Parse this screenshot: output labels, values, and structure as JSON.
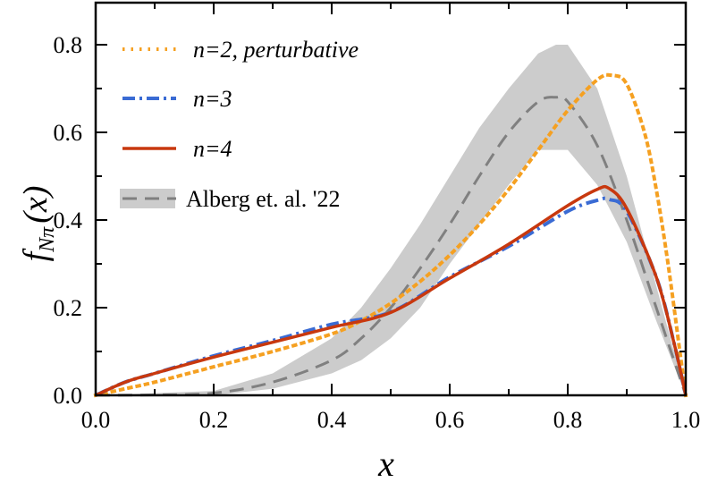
{
  "chart_data": {
    "type": "line",
    "xlabel": "x",
    "ylabel": {
      "main": "f",
      "sub": "Nπ",
      "arg": "(x)"
    },
    "xlim": [
      0,
      1
    ],
    "ylim": [
      0,
      0.88
    ],
    "xticks": [
      "0.0",
      "0.2",
      "0.4",
      "0.6",
      "0.8",
      "1.0"
    ],
    "yticks": [
      "0.0",
      "0.2",
      "0.4",
      "0.6",
      "0.8"
    ],
    "grid": false,
    "legend_position": "top-left",
    "series": [
      {
        "name": "n=2, perturbative",
        "color": "#f5a021",
        "style": "dotted",
        "x": [
          0,
          0.05,
          0.1,
          0.2,
          0.3,
          0.4,
          0.45,
          0.5,
          0.55,
          0.6,
          0.65,
          0.7,
          0.75,
          0.8,
          0.85,
          0.875,
          0.9,
          0.93,
          0.95,
          0.97,
          0.99,
          1.0
        ],
        "y": [
          0,
          0.015,
          0.03,
          0.065,
          0.1,
          0.14,
          0.17,
          0.21,
          0.26,
          0.32,
          0.39,
          0.47,
          0.56,
          0.65,
          0.72,
          0.73,
          0.71,
          0.6,
          0.47,
          0.3,
          0.1,
          0
        ]
      },
      {
        "name": "n=3",
        "color": "#3a6bd4",
        "style": "dashdot",
        "x": [
          0,
          0.05,
          0.1,
          0.2,
          0.3,
          0.4,
          0.5,
          0.6,
          0.7,
          0.8,
          0.85,
          0.87,
          0.9,
          0.95,
          0.98,
          1.0
        ],
        "y": [
          0,
          0.03,
          0.05,
          0.09,
          0.125,
          0.162,
          0.19,
          0.27,
          0.34,
          0.42,
          0.445,
          0.447,
          0.42,
          0.27,
          0.12,
          0
        ]
      },
      {
        "name": "n=4",
        "color": "#c8380e",
        "style": "solid",
        "x": [
          0,
          0.05,
          0.1,
          0.2,
          0.3,
          0.4,
          0.5,
          0.6,
          0.7,
          0.8,
          0.85,
          0.87,
          0.9,
          0.95,
          0.98,
          1.0
        ],
        "y": [
          0,
          0.03,
          0.05,
          0.087,
          0.121,
          0.155,
          0.189,
          0.267,
          0.345,
          0.433,
          0.47,
          0.472,
          0.426,
          0.27,
          0.12,
          0
        ]
      },
      {
        "name": "Alberg et. al. '22",
        "color": "#808080",
        "style": "dashed",
        "band_color": "#cccccc",
        "x": [
          0,
          0.1,
          0.2,
          0.3,
          0.4,
          0.45,
          0.5,
          0.55,
          0.6,
          0.65,
          0.7,
          0.75,
          0.78,
          0.8,
          0.85,
          0.9,
          0.95,
          1.0
        ],
        "y": [
          0,
          0.001,
          0.005,
          0.03,
          0.08,
          0.13,
          0.2,
          0.29,
          0.39,
          0.5,
          0.6,
          0.67,
          0.68,
          0.67,
          0.57,
          0.4,
          0.2,
          0
        ],
        "band_x": [
          0,
          0.2,
          0.3,
          0.4,
          0.45,
          0.5,
          0.55,
          0.6,
          0.65,
          0.7,
          0.75,
          0.78,
          0.8,
          0.85,
          0.9,
          0.95,
          1.0
        ],
        "band_upper": [
          0,
          0.01,
          0.05,
          0.13,
          0.2,
          0.29,
          0.39,
          0.5,
          0.61,
          0.7,
          0.78,
          0.8,
          0.8,
          0.7,
          0.5,
          0.25,
          0
        ],
        "band_lower": [
          0,
          0,
          0.015,
          0.05,
          0.08,
          0.13,
          0.2,
          0.3,
          0.39,
          0.48,
          0.56,
          0.56,
          0.56,
          0.48,
          0.35,
          0.17,
          0
        ]
      }
    ]
  }
}
